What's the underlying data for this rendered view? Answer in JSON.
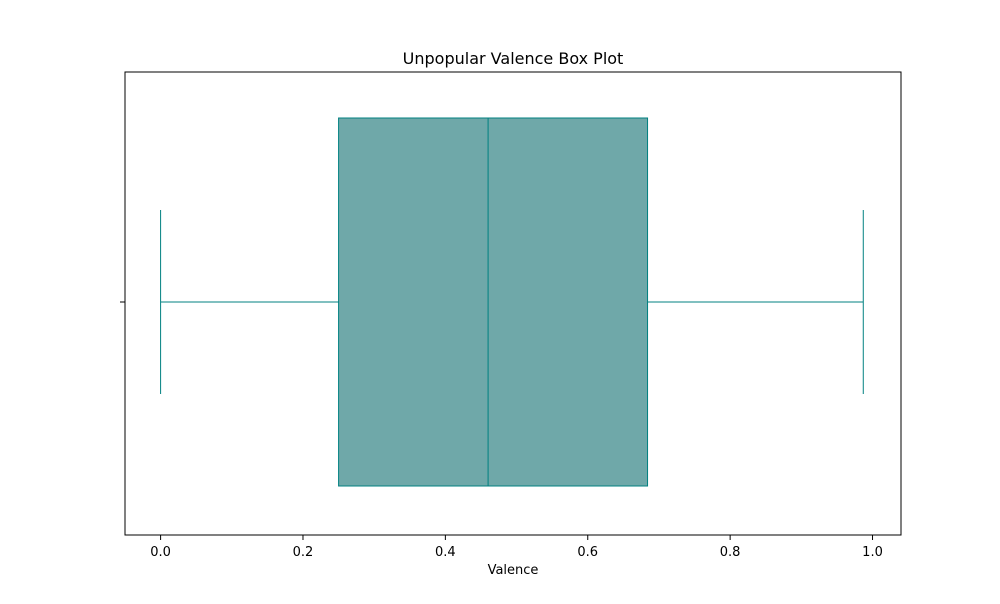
{
  "chart_data": {
    "type": "box",
    "title": "Unpopular Valence Box Plot",
    "xlabel": "Valence",
    "ylabel": "",
    "orientation": "horizontal",
    "xlim": [
      -0.05,
      1.04
    ],
    "xticks": [
      0.0,
      0.2,
      0.4,
      0.6,
      0.8,
      1.0
    ],
    "xtick_labels": [
      "0.0",
      "0.2",
      "0.4",
      "0.6",
      "0.8",
      "1.0"
    ],
    "grid": false,
    "legend": "none",
    "box": {
      "min": 0.0,
      "q1": 0.25,
      "median": 0.46,
      "q3": 0.684,
      "max": 0.987
    },
    "colors": {
      "box_fill": "#6fa8a9",
      "box_edge": "#008080",
      "axis": "#000000"
    }
  }
}
